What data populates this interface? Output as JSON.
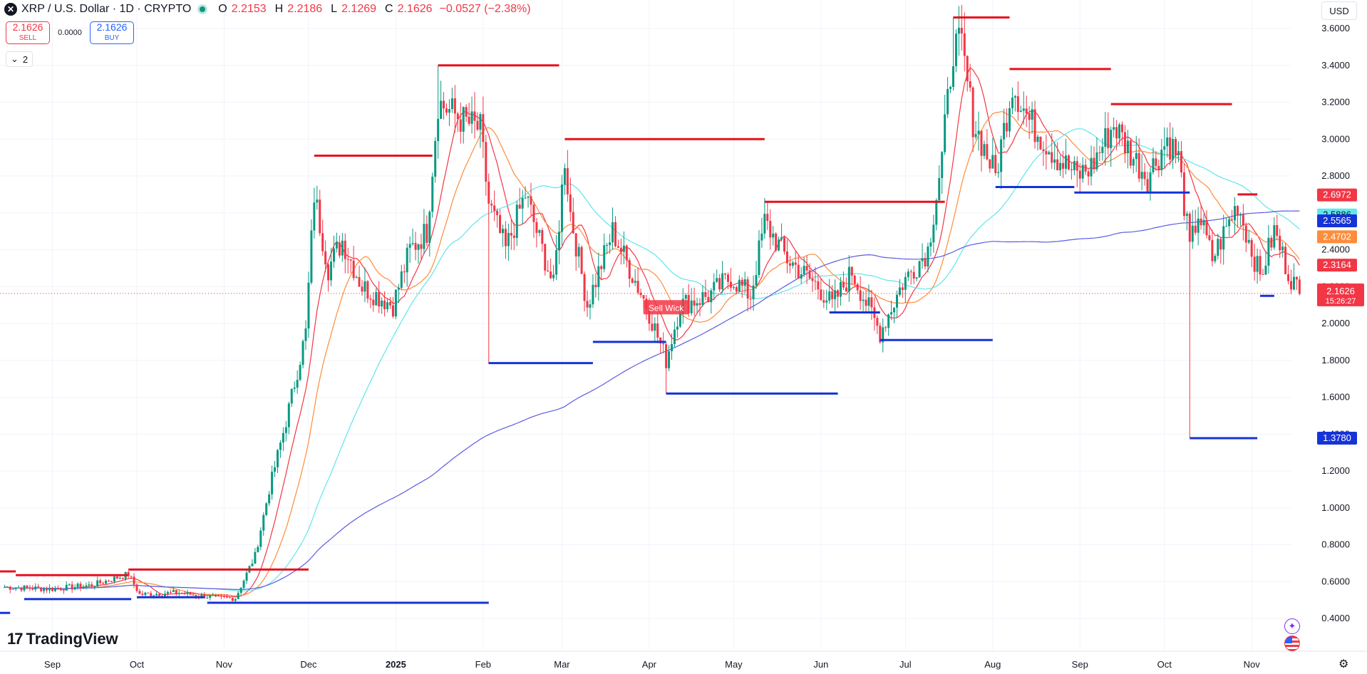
{
  "header": {
    "symbol_icon": "x-icon",
    "title": "XRP / U.S. Dollar · 1D · CRYPTO",
    "open_label": "O",
    "open": "2.2153",
    "high_label": "H",
    "high": "2.2186",
    "low_label": "L",
    "low": "2.1269",
    "close_label": "C",
    "close": "2.1626",
    "change": "−0.0527 (−2.38%)"
  },
  "trade": {
    "sell_price": "2.1626",
    "sell_label": "SELL",
    "spread": "0.0000",
    "buy_price": "2.1626",
    "buy_label": "BUY"
  },
  "indicators_toggle": {
    "count": "2"
  },
  "currency": "USD",
  "brand": "TradingView",
  "colors": {
    "up": "#089981",
    "down": "#f23645",
    "ma_red": "#f23645",
    "ma_orange": "#ff8c3a",
    "ma_cyan": "#5fe6ec",
    "ma_blue": "#5b5be3",
    "resistance": "#e8101e",
    "support": "#1533d6",
    "price_line": "#f23645"
  },
  "chart_data": {
    "type": "candlestick",
    "ylim": [
      0.25,
      3.75
    ],
    "y_ticks": [
      "0.4000",
      "0.6000",
      "0.8000",
      "1.0000",
      "1.2000",
      "1.4000",
      "1.6000",
      "1.8000",
      "2.0000",
      "2.2000",
      "2.4000",
      "2.6000",
      "2.8000",
      "3.0000",
      "3.2000",
      "3.4000",
      "3.6000"
    ],
    "x_tick_labels": [
      "Sep",
      "Oct",
      "Nov",
      "Dec",
      "2025",
      "Feb",
      "Mar",
      "Apr",
      "May",
      "Jun",
      "Jul",
      "Aug",
      "Sep",
      "Oct",
      "Nov"
    ],
    "anchors": [
      {
        "d": "2024-08-15",
        "c": 0.57
      },
      {
        "d": "2024-09-01",
        "c": 0.56
      },
      {
        "d": "2024-09-15",
        "c": 0.58
      },
      {
        "d": "2024-09-28",
        "c": 0.64
      },
      {
        "d": "2024-10-02",
        "c": 0.53
      },
      {
        "d": "2024-10-15",
        "c": 0.54
      },
      {
        "d": "2024-10-31",
        "c": 0.51
      },
      {
        "d": "2024-11-05",
        "c": 0.51
      },
      {
        "d": "2024-11-12",
        "c": 0.74
      },
      {
        "d": "2024-11-17",
        "c": 1.1
      },
      {
        "d": "2024-11-23",
        "c": 1.47
      },
      {
        "d": "2024-11-30",
        "c": 1.95
      },
      {
        "d": "2024-12-03",
        "c": 2.7
      },
      {
        "d": "2024-12-08",
        "c": 2.3
      },
      {
        "d": "2024-12-13",
        "c": 2.45
      },
      {
        "d": "2024-12-20",
        "c": 2.2
      },
      {
        "d": "2024-12-31",
        "c": 2.1
      },
      {
        "d": "2025-01-06",
        "c": 2.4
      },
      {
        "d": "2025-01-12",
        "c": 2.5
      },
      {
        "d": "2025-01-16",
        "c": 3.2
      },
      {
        "d": "2025-01-25",
        "c": 3.1
      },
      {
        "d": "2025-01-31",
        "c": 3.05
      },
      {
        "d": "2025-02-03",
        "c": 2.65
      },
      {
        "d": "2025-02-09",
        "c": 2.4
      },
      {
        "d": "2025-02-16",
        "c": 2.7
      },
      {
        "d": "2025-02-26",
        "c": 2.2
      },
      {
        "d": "2025-03-02",
        "c": 2.9
      },
      {
        "d": "2025-03-04",
        "c": 2.6
      },
      {
        "d": "2025-03-10",
        "c": 2.1
      },
      {
        "d": "2025-03-19",
        "c": 2.5
      },
      {
        "d": "2025-03-31",
        "c": 2.1
      },
      {
        "d": "2025-04-07",
        "c": 1.8
      },
      {
        "d": "2025-04-12",
        "c": 2.1
      },
      {
        "d": "2025-04-22",
        "c": 2.15
      },
      {
        "d": "2025-04-30",
        "c": 2.25
      },
      {
        "d": "2025-05-07",
        "c": 2.15
      },
      {
        "d": "2025-05-12",
        "c": 2.55
      },
      {
        "d": "2025-05-20",
        "c": 2.35
      },
      {
        "d": "2025-05-31",
        "c": 2.2
      },
      {
        "d": "2025-06-05",
        "c": 2.1
      },
      {
        "d": "2025-06-12",
        "c": 2.28
      },
      {
        "d": "2025-06-22",
        "c": 1.95
      },
      {
        "d": "2025-06-30",
        "c": 2.22
      },
      {
        "d": "2025-07-09",
        "c": 2.4
      },
      {
        "d": "2025-07-14",
        "c": 2.9
      },
      {
        "d": "2025-07-18",
        "c": 3.5
      },
      {
        "d": "2025-07-21",
        "c": 3.5
      },
      {
        "d": "2025-07-25",
        "c": 3.1
      },
      {
        "d": "2025-08-02",
        "c": 2.8
      },
      {
        "d": "2025-08-08",
        "c": 3.3
      },
      {
        "d": "2025-08-14",
        "c": 3.1
      },
      {
        "d": "2025-08-24",
        "c": 2.9
      },
      {
        "d": "2025-08-31",
        "c": 2.8
      },
      {
        "d": "2025-09-05",
        "c": 2.85
      },
      {
        "d": "2025-09-13",
        "c": 3.08
      },
      {
        "d": "2025-09-20",
        "c": 2.9
      },
      {
        "d": "2025-09-25",
        "c": 2.8
      },
      {
        "d": "2025-10-02",
        "c": 3.0
      },
      {
        "d": "2025-10-06",
        "c": 2.9
      },
      {
        "d": "2025-10-10",
        "c": 2.4
      },
      {
        "d": "2025-10-13",
        "c": 2.6
      },
      {
        "d": "2025-10-18",
        "c": 2.35
      },
      {
        "d": "2025-10-27",
        "c": 2.65
      },
      {
        "d": "2025-11-04",
        "c": 2.25
      },
      {
        "d": "2025-11-09",
        "c": 2.5
      },
      {
        "d": "2025-11-14",
        "c": 2.28
      },
      {
        "d": "2025-11-18",
        "c": 2.16
      }
    ],
    "wicks": [
      {
        "d": "2025-02-03",
        "low": 1.78
      },
      {
        "d": "2025-04-07",
        "low": 1.62
      },
      {
        "d": "2025-10-10",
        "low": 1.378
      },
      {
        "d": "2025-07-18",
        "high": 3.66
      },
      {
        "d": "2025-01-16",
        "high": 3.4
      }
    ],
    "moving_averages": [
      {
        "period": 10,
        "color": "#f23645",
        "last": "2.3164"
      },
      {
        "period": 21,
        "color": "#ff8c3a",
        "last": "2.4702"
      },
      {
        "period": 50,
        "color": "#5fe6ec",
        "last": "2.5886"
      },
      {
        "period": 200,
        "color": "#5b5be3",
        "last": "2.5565"
      }
    ],
    "resistance_lines": [
      {
        "start": "2024-07-25",
        "end": "2024-08-19",
        "y": 0.655
      },
      {
        "start": "2024-08-19",
        "end": "2024-09-28",
        "y": 0.635
      },
      {
        "start": "2024-09-28",
        "end": "2024-12-01",
        "y": 0.665
      },
      {
        "start": "2024-12-03",
        "end": "2025-01-14",
        "y": 2.91
      },
      {
        "start": "2025-01-16",
        "end": "2025-02-28",
        "y": 3.4
      },
      {
        "start": "2025-03-02",
        "end": "2025-05-12",
        "y": 3.0
      },
      {
        "start": "2025-05-12",
        "end": "2025-07-15",
        "y": 2.66
      },
      {
        "start": "2025-07-18",
        "end": "2025-08-07",
        "y": 3.66
      },
      {
        "start": "2025-08-07",
        "end": "2025-09-12",
        "y": 3.38
      },
      {
        "start": "2025-09-12",
        "end": "2025-10-25",
        "y": 3.19
      },
      {
        "start": "2025-10-27",
        "end": "2025-11-03",
        "y": 2.7
      }
    ],
    "support_lines": [
      {
        "start": "2024-07-25",
        "end": "2024-08-17",
        "y": 0.43
      },
      {
        "start": "2024-08-22",
        "end": "2024-09-29",
        "y": 0.505
      },
      {
        "start": "2024-10-01",
        "end": "2024-10-25",
        "y": 0.515
      },
      {
        "start": "2024-10-26",
        "end": "2025-02-03",
        "y": 0.485
      },
      {
        "start": "2025-02-03",
        "end": "2025-03-12",
        "y": 1.785
      },
      {
        "start": "2025-03-12",
        "end": "2025-04-07",
        "y": 1.9
      },
      {
        "start": "2025-04-07",
        "end": "2025-06-07",
        "y": 1.62
      },
      {
        "start": "2025-06-04",
        "end": "2025-06-22",
        "y": 2.06
      },
      {
        "start": "2025-06-22",
        "end": "2025-08-01",
        "y": 1.91
      },
      {
        "start": "2025-08-02",
        "end": "2025-08-30",
        "y": 2.74
      },
      {
        "start": "2025-08-30",
        "end": "2025-10-10",
        "y": 2.71
      },
      {
        "start": "2025-10-10",
        "end": "2025-11-03",
        "y": 1.378
      },
      {
        "start": "2025-11-04",
        "end": "2025-11-09",
        "y": 2.15
      }
    ],
    "price_labels": [
      {
        "value": 2.6972,
        "text": "2.6972",
        "bg": "#f23645"
      },
      {
        "value": 2.5886,
        "text": "2.5886",
        "bg": "#5fe6ec",
        "fg": "#131722"
      },
      {
        "value": 2.5565,
        "text": "2.5565",
        "bg": "#1533d6"
      },
      {
        "value": 2.4702,
        "text": "2.4702",
        "bg": "#ff8c3a"
      },
      {
        "value": 2.3164,
        "text": "2.3164",
        "bg": "#f23645"
      },
      {
        "value": 1.378,
        "text": "1.3780",
        "bg": "#1533d6"
      }
    ],
    "current_price": {
      "value": 2.1626,
      "text": "2.1626",
      "countdown": "15:26:27"
    },
    "annotation": {
      "text": "Sell Wick",
      "d": "2025-04-07",
      "y": 2.08
    }
  }
}
